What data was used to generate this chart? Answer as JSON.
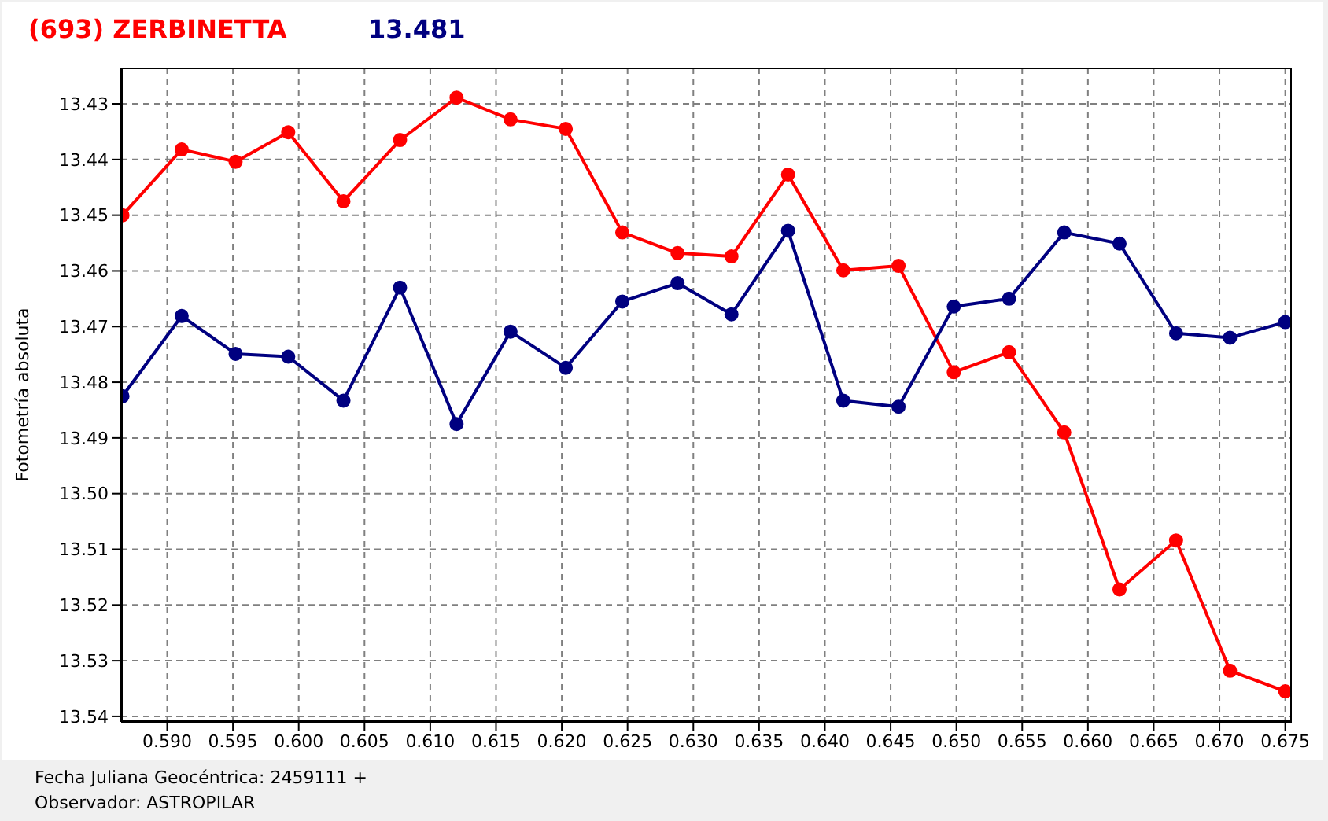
{
  "chart_data": {
    "type": "line",
    "title": "(693) ZERBINETTA",
    "subtitle": "13.481",
    "xlabel": "Fecha Juliana Geocéntrica: 2459111 +",
    "ylabel": "Fotometría absoluta",
    "annotations": [
      "Observador: ASTROPILAR"
    ],
    "x": [
      0.5866,
      0.5911,
      0.5952,
      0.5992,
      0.6034,
      0.6077,
      0.612,
      0.6161,
      0.6203,
      0.6246,
      0.6288,
      0.6329,
      0.6372,
      0.6414,
      0.6456,
      0.6498,
      0.654,
      0.6582,
      0.6624,
      0.6667,
      0.6708,
      0.675
    ],
    "series": [
      {
        "color": "#ff0000",
        "values": [
          13.45,
          13.4382,
          13.4404,
          13.4351,
          13.4475,
          13.4365,
          13.4289,
          13.4328,
          13.4345,
          13.4531,
          13.4568,
          13.4574,
          13.4427,
          13.4599,
          13.4591,
          13.4782,
          13.4746,
          13.489,
          13.5172,
          13.5084,
          13.5318,
          13.5355
        ]
      },
      {
        "color": "#000080",
        "values": [
          13.4825,
          13.4681,
          13.4749,
          13.4754,
          13.4833,
          13.463,
          13.4875,
          13.4709,
          13.4774,
          13.4655,
          13.4622,
          13.4678,
          13.4528,
          13.4833,
          13.4844,
          13.4664,
          13.465,
          13.4531,
          13.4551,
          13.4712,
          13.472,
          13.4692
        ]
      }
    ],
    "xlim": [
      0.5865,
      0.6755
    ],
    "xticks": [
      {
        "value": 0.59,
        "label": "0.590"
      },
      {
        "value": 0.595,
        "label": "0.595"
      },
      {
        "value": 0.6,
        "label": "0.600"
      },
      {
        "value": 0.605,
        "label": "0.605"
      },
      {
        "value": 0.61,
        "label": "0.610"
      },
      {
        "value": 0.615,
        "label": "0.615"
      },
      {
        "value": 0.62,
        "label": "0.620"
      },
      {
        "value": 0.625,
        "label": "0.625"
      },
      {
        "value": 0.63,
        "label": "0.630"
      },
      {
        "value": 0.635,
        "label": "0.635"
      },
      {
        "value": 0.64,
        "label": "0.640"
      },
      {
        "value": 0.645,
        "label": "0.645"
      },
      {
        "value": 0.65,
        "label": "0.650"
      },
      {
        "value": 0.655,
        "label": "0.655"
      },
      {
        "value": 0.66,
        "label": "0.660"
      },
      {
        "value": 0.665,
        "label": "0.665"
      },
      {
        "value": 0.67,
        "label": "0.670"
      },
      {
        "value": 0.675,
        "label": "0.675"
      }
    ],
    "ylim": [
      13.541,
      13.4235
    ],
    "yticks": [
      13.43,
      13.44,
      13.45,
      13.46,
      13.47,
      13.48,
      13.49,
      {
        "value": 13.5,
        "label": "13.50"
      },
      13.51,
      13.52,
      13.53,
      13.54
    ],
    "grid": true,
    "marker": "circle",
    "line_style": "solid"
  }
}
